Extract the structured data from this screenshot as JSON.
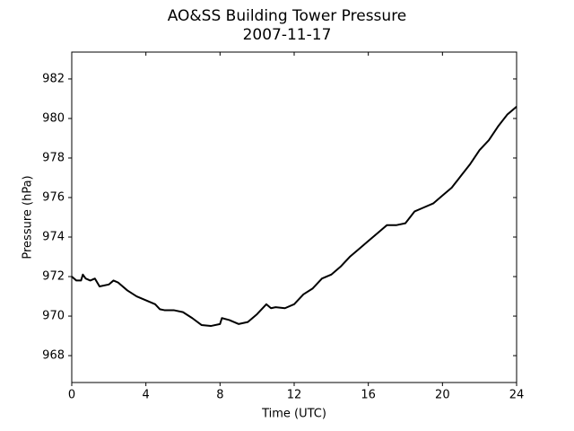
{
  "chart_data": {
    "type": "line",
    "title": "AO&SS Building Tower Pressure",
    "subtitle": "2007-11-17",
    "x_label": "Time (UTC)",
    "y_label": "Pressure (hPa)",
    "xlim": [
      0,
      24
    ],
    "xticks": [
      0,
      4,
      8,
      12,
      16,
      20,
      24
    ],
    "ylim": [
      966.64,
      983.36
    ],
    "yticks": [
      968,
      970,
      972,
      974,
      976,
      978,
      980,
      982
    ],
    "grid": false,
    "series": [
      {
        "color": "#000000",
        "x": [
          0,
          0.25,
          0.5,
          0.6,
          0.75,
          1.0,
          1.25,
          1.5,
          2.0,
          2.25,
          2.5,
          3.0,
          3.5,
          4.0,
          4.5,
          4.75,
          5.0,
          5.5,
          6.0,
          6.5,
          7.0,
          7.5,
          8.0,
          8.1,
          8.5,
          9.0,
          9.5,
          10.0,
          10.5,
          10.75,
          11.0,
          11.5,
          12.0,
          12.5,
          13.0,
          13.5,
          14.0,
          14.5,
          15.0,
          15.5,
          16.0,
          16.5,
          17.0,
          17.5,
          18.0,
          18.5,
          19.0,
          19.5,
          20.0,
          20.5,
          21.0,
          21.5,
          22.0,
          22.5,
          23.0,
          23.5,
          24.0
        ],
        "values": [
          972.0,
          971.8,
          971.8,
          972.1,
          971.9,
          971.8,
          971.9,
          971.5,
          971.6,
          971.8,
          971.7,
          971.3,
          971.0,
          970.8,
          970.6,
          970.35,
          970.3,
          970.3,
          970.2,
          969.9,
          969.55,
          969.5,
          969.6,
          969.9,
          969.8,
          969.6,
          969.7,
          970.1,
          970.6,
          970.4,
          970.45,
          970.4,
          970.6,
          971.1,
          971.4,
          971.9,
          972.1,
          972.5,
          973.0,
          973.4,
          973.8,
          974.2,
          974.6,
          974.6,
          974.7,
          975.3,
          975.5,
          975.7,
          976.1,
          976.5,
          977.1,
          977.7,
          978.4,
          978.9,
          979.6,
          980.2,
          980.6
        ]
      }
    ]
  }
}
